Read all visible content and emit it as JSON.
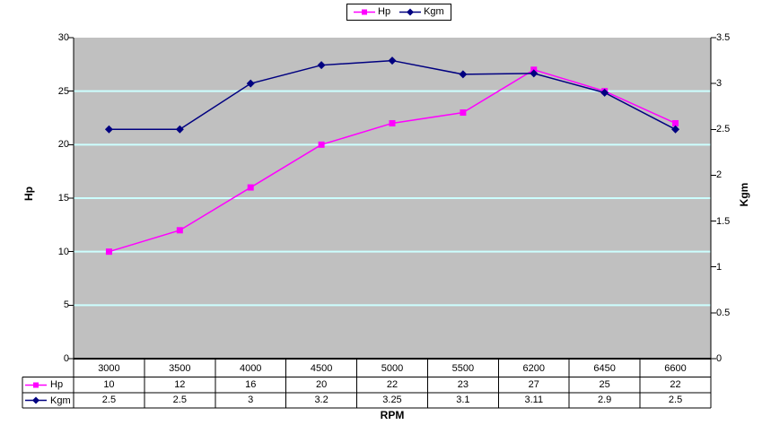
{
  "chart_data": {
    "type": "line",
    "title": "",
    "categories": [
      "3000",
      "3500",
      "4000",
      "4500",
      "5000",
      "5500",
      "6200",
      "6450",
      "6600"
    ],
    "series": [
      {
        "name": "Hp",
        "axis": "left",
        "color": "#FF00FF",
        "marker": "square",
        "values": [
          10,
          12,
          16,
          20,
          22,
          23,
          27,
          25,
          22
        ],
        "labels": [
          "10",
          "12",
          "16",
          "20",
          "22",
          "23",
          "27",
          "25",
          "22"
        ]
      },
      {
        "name": "Kgm",
        "axis": "right",
        "color": "#000080",
        "marker": "diamond",
        "values": [
          2.5,
          2.5,
          3,
          3.2,
          3.25,
          3.1,
          3.11,
          2.9,
          2.5
        ],
        "labels": [
          "2.5",
          "2.5",
          "3",
          "3.2",
          "3.25",
          "3.1",
          "3.11",
          "2.9",
          "2.5"
        ]
      }
    ],
    "xlabel": "RPM",
    "axes": {
      "left": {
        "title": "Hp",
        "min": 0,
        "max": 30,
        "ticks": [
          "0",
          "5",
          "10",
          "15",
          "20",
          "25",
          "30"
        ]
      },
      "right": {
        "title": "Kgm",
        "min": 0,
        "max": 3.5,
        "ticks": [
          "0",
          "0.5",
          "1",
          "1.5",
          "2",
          "2.5",
          "3",
          "3.5"
        ]
      }
    },
    "legend": {
      "position": "top",
      "entries": [
        "Hp",
        "Kgm"
      ]
    },
    "grid": true,
    "data_table_shown": true,
    "colors": {
      "plot_background": "#C0C0C0",
      "gridline": "#CCFFFF",
      "axis": "#000000",
      "page_background": "#FFFFFF"
    }
  }
}
